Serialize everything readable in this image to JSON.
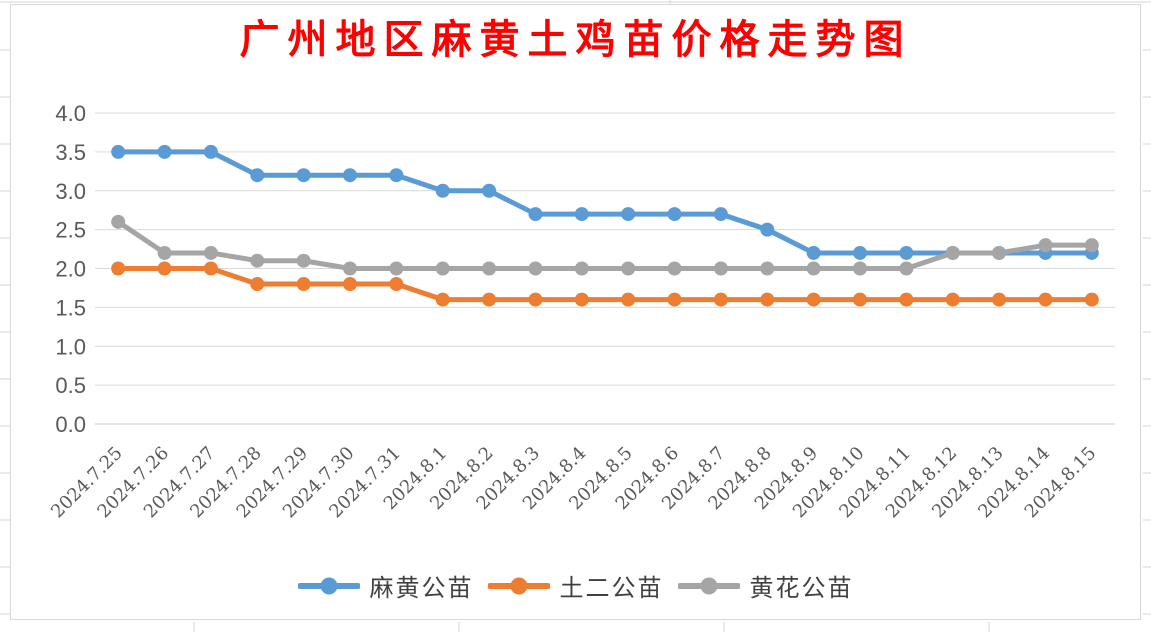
{
  "chart_data": {
    "type": "line",
    "title": "广州地区麻黄土鸡苗价格走势图",
    "categories": [
      "2024.7.25",
      "2024.7.26",
      "2024.7.27",
      "2024.7.28",
      "2024.7.29",
      "2024.7.30",
      "2024.7.31",
      "2024.8.1",
      "2024.8.2",
      "2024.8.3",
      "2024.8.4",
      "2024.8.5",
      "2024.8.6",
      "2024.8.7",
      "2024.8.8",
      "2024.8.9",
      "2024.8.10",
      "2024.8.11",
      "2024.8.12",
      "2024.8.13",
      "2024.8.14",
      "2024.8.15"
    ],
    "series": [
      {
        "name": "麻黄公苗",
        "color": "#5B9BD5",
        "values": [
          3.5,
          3.5,
          3.5,
          3.2,
          3.2,
          3.2,
          3.2,
          3.0,
          3.0,
          2.7,
          2.7,
          2.7,
          2.7,
          2.7,
          2.5,
          2.2,
          2.2,
          2.2,
          2.2,
          2.2,
          2.2,
          2.2
        ]
      },
      {
        "name": "土二公苗",
        "color": "#ED7D31",
        "values": [
          2.0,
          2.0,
          2.0,
          1.8,
          1.8,
          1.8,
          1.8,
          1.6,
          1.6,
          1.6,
          1.6,
          1.6,
          1.6,
          1.6,
          1.6,
          1.6,
          1.6,
          1.6,
          1.6,
          1.6,
          1.6,
          1.6
        ]
      },
      {
        "name": "黄花公苗",
        "color": "#A5A5A5",
        "values": [
          2.6,
          2.2,
          2.2,
          2.1,
          2.1,
          2.0,
          2.0,
          2.0,
          2.0,
          2.0,
          2.0,
          2.0,
          2.0,
          2.0,
          2.0,
          2.0,
          2.0,
          2.0,
          2.2,
          2.2,
          2.3,
          2.3
        ]
      }
    ],
    "ylim": [
      0.0,
      4.0
    ],
    "ytick_step": 0.5,
    "ytick_labels": [
      "0.0",
      "0.5",
      "1.0",
      "1.5",
      "2.0",
      "2.5",
      "3.0",
      "3.5",
      "4.0"
    ],
    "xlabel": "",
    "ylabel": "",
    "grid": true,
    "legend_position": "bottom"
  },
  "style_colors": {
    "title_color": "#FF0000",
    "axis_text_color": "#595959",
    "gridline_color": "#D9D9D9",
    "axis_line_color": "#C9C9C9",
    "chart_border_color": "#D9D9D9",
    "sheet_gridline_color": "#D6D6D6",
    "legend_text_color": "#404040"
  }
}
